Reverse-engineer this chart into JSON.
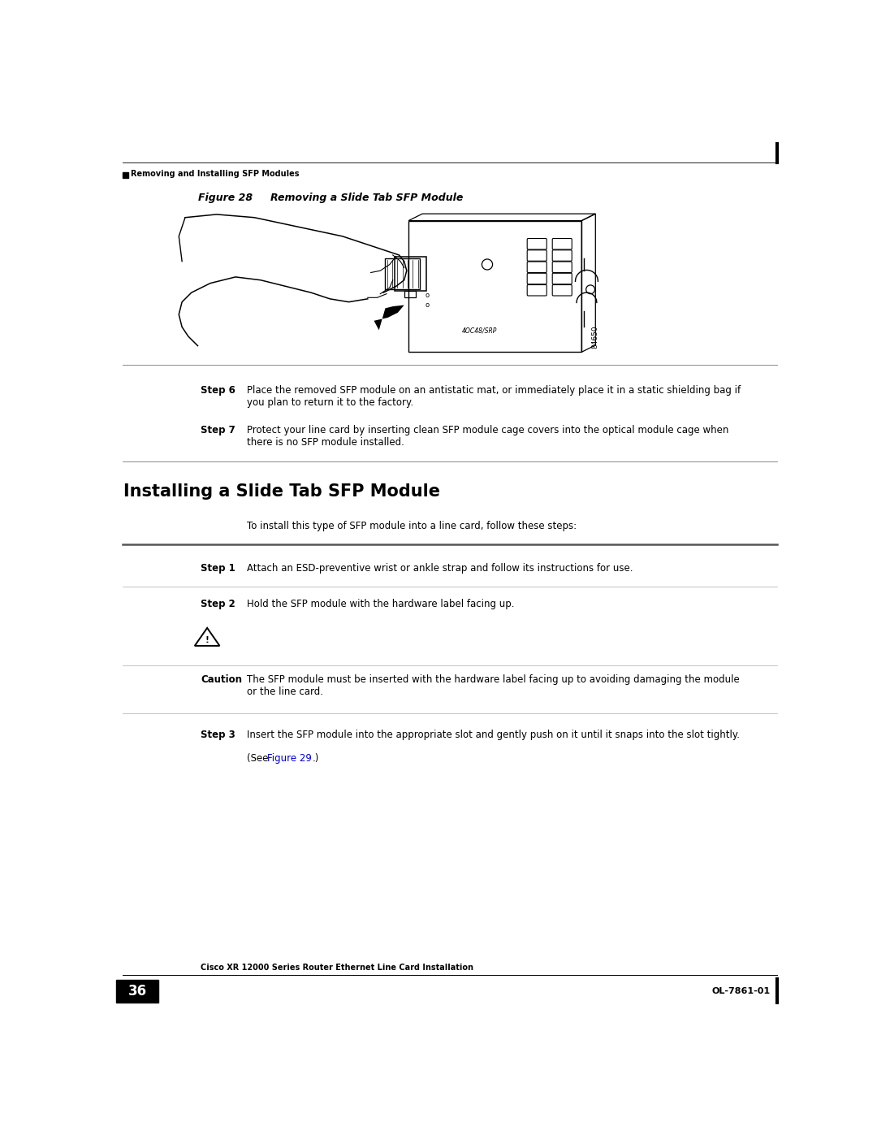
{
  "bg_color": "#ffffff",
  "page_width": 10.8,
  "page_height": 13.97,
  "top_header_text": "Removing and Installing SFP Modules",
  "figure_label": "Figure 28",
  "figure_title": "Removing a Slide Tab SFP Module",
  "section_title": "Installing a Slide Tab SFP Module",
  "intro_text": "To install this type of SFP module into a line card, follow these steps:",
  "steps": [
    {
      "label": "Step 6",
      "text": "Place the removed SFP module on an antistatic mat, or immediately place it in a static shielding bag if\nyou plan to return it to the factory."
    },
    {
      "label": "Step 7",
      "text": "Protect your line card by inserting clean SFP module cage covers into the optical module cage when\nthere is no SFP module installed."
    }
  ],
  "install_steps": [
    {
      "label": "Step 1",
      "text": "Attach an ESD-preventive wrist or ankle strap and follow its instructions for use.",
      "is_caution": false
    },
    {
      "label": "Step 2",
      "text": "Hold the SFP module with the hardware label facing up.",
      "is_caution": false
    },
    {
      "label": "Caution",
      "text": "The SFP module must be inserted with the hardware label facing up to avoiding damaging the module\nor the line card.",
      "is_caution": true
    },
    {
      "label": "Step 3",
      "text": "Insert the SFP module into the appropriate slot and gently push on it until it snaps into the slot tightly.\n(See Figure 29.)",
      "is_caution": false,
      "has_link": true,
      "link_text": "Figure 29",
      "link_color": "#0000cc"
    }
  ],
  "footer_title": "Cisco XR 12000 Series Router Ethernet Line Card Installation",
  "footer_page": "36",
  "footer_right": "OL-7861-01",
  "image_number": "84650",
  "card_label": "4OC48/SRP"
}
